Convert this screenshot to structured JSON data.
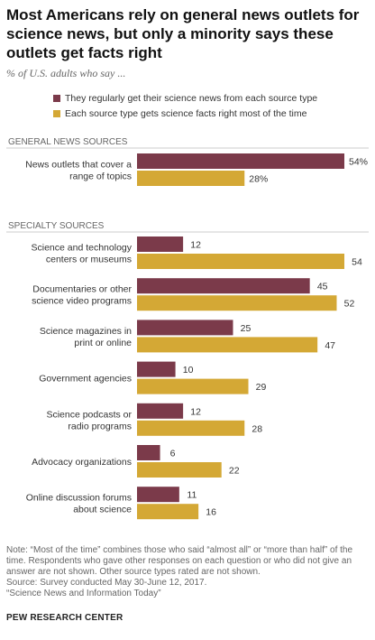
{
  "title": "Most Americans rely on general news outlets for science news, but only a minority says these outlets get facts right",
  "subtitle": "% of U.S. adults who say ...",
  "notes": [
    "Note: “Most of the time” combines those who said “almost all” or “more than half” of the time. Respondents who gave other responses on each question or who did not give an answer are not shown. Other source types rated are not shown.",
    "Source: Survey conducted May 30-June 12, 2017.",
    "“Science News and Information Today”"
  ],
  "source_org": "PEW RESEARCH CENTER",
  "chart_data": {
    "type": "bar",
    "orientation": "horizontal",
    "series": [
      {
        "name": "They regularly get their science news from each source type",
        "color": "#7b3a4a"
      },
      {
        "name": "Each source type gets science facts right most of the time",
        "color": "#d4a835"
      }
    ],
    "groups": [
      {
        "label": "GENERAL NEWS SOURCES",
        "categories": [
          {
            "label": [
              "News outlets that cover a",
              "range of topics"
            ],
            "values": [
              54,
              28
            ],
            "value_labels": [
              "54%",
              "28%"
            ]
          }
        ]
      },
      {
        "label": "SPECIALTY SOURCES",
        "categories": [
          {
            "label": [
              "Science and technology",
              "centers or museums"
            ],
            "values": [
              12,
              54
            ],
            "value_labels": [
              "12",
              "54"
            ]
          },
          {
            "label": [
              "Documentaries or other",
              "science video programs"
            ],
            "values": [
              45,
              52
            ],
            "value_labels": [
              "45",
              "52"
            ]
          },
          {
            "label": [
              "Science magazines in",
              "print or online"
            ],
            "values": [
              25,
              47
            ],
            "value_labels": [
              "25",
              "47"
            ]
          },
          {
            "label": [
              "Government agencies"
            ],
            "values": [
              10,
              29
            ],
            "value_labels": [
              "10",
              "29"
            ]
          },
          {
            "label": [
              "Science podcasts or",
              "radio programs"
            ],
            "values": [
              12,
              28
            ],
            "value_labels": [
              "12",
              "28"
            ]
          },
          {
            "label": [
              "Advocacy organizations"
            ],
            "values": [
              6,
              22
            ],
            "value_labels": [
              "6",
              "22"
            ]
          },
          {
            "label": [
              "Online discussion forums",
              "about science"
            ],
            "values": [
              11,
              16
            ],
            "value_labels": [
              "11",
              "16"
            ]
          }
        ]
      }
    ],
    "xlim": [
      0,
      54
    ]
  }
}
